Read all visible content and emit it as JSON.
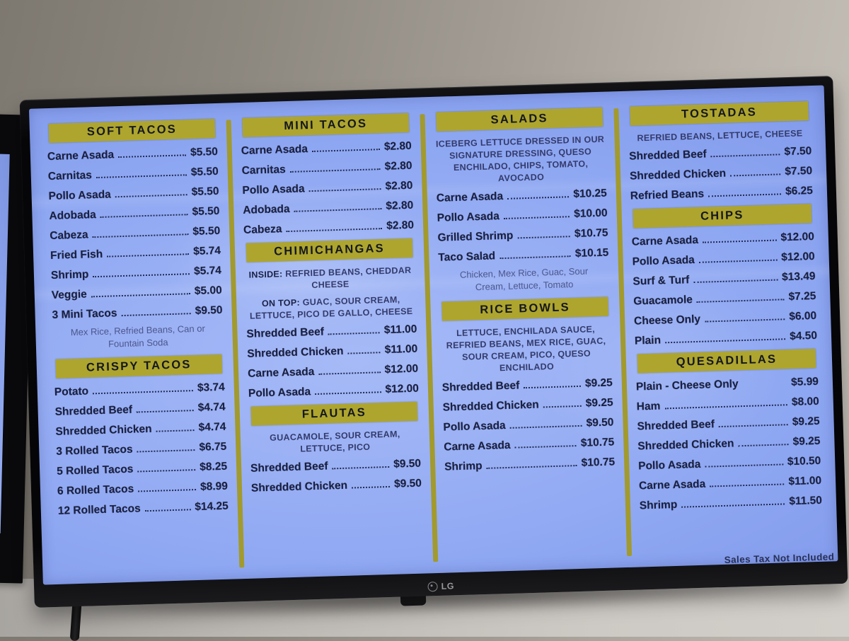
{
  "photo": {
    "brand": "LG",
    "sales_tax_note": "Sales Tax Not Included"
  },
  "colors": {
    "screen_blue": "#8EA7F2",
    "header_olive": "#AEA52F",
    "text_dark": "#1A2040",
    "bezel_black": "#060608"
  },
  "menu": {
    "columns": [
      {
        "sections": [
          {
            "title": "SOFT TACOS",
            "items": [
              {
                "name": "Carne Asada",
                "price": "$5.50"
              },
              {
                "name": "Carnitas",
                "price": "$5.50"
              },
              {
                "name": "Pollo Asada",
                "price": "$5.50"
              },
              {
                "name": "Adobada",
                "price": "$5.50"
              },
              {
                "name": "Cabeza",
                "price": "$5.50"
              },
              {
                "name": "Fried Fish",
                "price": "$5.74"
              },
              {
                "name": "Shrimp",
                "price": "$5.74"
              },
              {
                "name": "Veggie",
                "price": "$5.00"
              },
              {
                "name": "3 Mini Tacos",
                "price": "$9.50"
              }
            ],
            "note": "Mex Rice, Refried Beans, Can or Fountain Soda"
          },
          {
            "title": "CRISPY TACOS",
            "items": [
              {
                "name": "Potato",
                "price": "$3.74"
              },
              {
                "name": "Shredded Beef",
                "price": "$4.74"
              },
              {
                "name": "Shredded Chicken",
                "price": "$4.74"
              },
              {
                "name": "3 Rolled Tacos",
                "price": "$6.75"
              },
              {
                "name": "5 Rolled Tacos",
                "price": "$8.25"
              },
              {
                "name": "6 Rolled Tacos",
                "price": "$8.99"
              },
              {
                "name": "12 Rolled Tacos",
                "price": "$14.25"
              }
            ]
          }
        ]
      },
      {
        "sections": [
          {
            "title": "MINI TACOS",
            "items": [
              {
                "name": "Carne Asada",
                "price": "$2.80"
              },
              {
                "name": "Carnitas",
                "price": "$2.80"
              },
              {
                "name": "Pollo Asada",
                "price": "$2.80"
              },
              {
                "name": "Adobada",
                "price": "$2.80"
              },
              {
                "name": "Cabeza",
                "price": "$2.80"
              }
            ]
          },
          {
            "title": "CHIMICHANGAS",
            "desc_lines": [
              {
                "prefix": "INSIDE:",
                "text": "REFRIED BEANS, CHEDDAR CHEESE"
              },
              {
                "prefix": "ON TOP:",
                "text": "GUAC, SOUR CREAM, LETTUCE, PICO DE GALLO, CHEESE"
              }
            ],
            "items": [
              {
                "name": "Shredded Beef",
                "price": "$11.00"
              },
              {
                "name": "Shredded Chicken",
                "price": "$11.00"
              },
              {
                "name": "Carne Asada",
                "price": "$12.00"
              },
              {
                "name": "Pollo Asada",
                "price": "$12.00"
              }
            ]
          },
          {
            "title": "FLAUTAS",
            "desc": "GUACAMOLE, SOUR CREAM, LETTUCE, PICO",
            "items": [
              {
                "name": "Shredded Beef",
                "price": "$9.50"
              },
              {
                "name": "Shredded Chicken",
                "price": "$9.50"
              }
            ]
          }
        ]
      },
      {
        "sections": [
          {
            "title": "SALADS",
            "desc": "ICEBERG LETTUCE DRESSED IN OUR SIGNATURE DRESSING, QUESO ENCHILADO, CHIPS, TOMATO, AVOCADO",
            "items": [
              {
                "name": "Carne Asada",
                "price": "$10.25"
              },
              {
                "name": "Pollo Asada",
                "price": "$10.00"
              },
              {
                "name": "Grilled Shrimp",
                "price": "$10.75"
              },
              {
                "name": "Taco Salad",
                "price": "$10.15"
              }
            ],
            "note": "Chicken, Mex Rice, Guac, Sour Cream, Lettuce, Tomato"
          },
          {
            "title": "RICE BOWLS",
            "desc": "LETTUCE, ENCHILADA SAUCE, REFRIED BEANS, MEX RICE, GUAC, SOUR CREAM, PICO, QUESO ENCHILADO",
            "items": [
              {
                "name": "Shredded Beef",
                "price": "$9.25"
              },
              {
                "name": "Shredded Chicken",
                "price": "$9.25"
              },
              {
                "name": "Pollo Asada",
                "price": "$9.50"
              },
              {
                "name": "Carne Asada",
                "price": "$10.75"
              },
              {
                "name": "Shrimp",
                "price": "$10.75"
              }
            ]
          }
        ]
      },
      {
        "sections": [
          {
            "title": "TOSTADAS",
            "desc": "REFRIED BEANS, LETTUCE, CHEESE",
            "items": [
              {
                "name": "Shredded Beef",
                "price": "$7.50"
              },
              {
                "name": "Shredded Chicken",
                "price": "$7.50"
              },
              {
                "name": "Refried Beans",
                "price": "$6.25"
              }
            ]
          },
          {
            "title": "CHIPS",
            "items": [
              {
                "name": "Carne Asada",
                "price": "$12.00"
              },
              {
                "name": "Pollo Asada",
                "price": "$12.00"
              },
              {
                "name": "Surf & Turf",
                "price": "$13.49"
              },
              {
                "name": "Guacamole",
                "price": "$7.25"
              },
              {
                "name": "Cheese Only",
                "price": "$6.00"
              },
              {
                "name": "Plain",
                "price": "$4.50"
              }
            ]
          },
          {
            "title": "QUESADILLAS",
            "items": [
              {
                "name": "Plain - Cheese Only",
                "price": "$5.99",
                "leader": false
              },
              {
                "name": "Ham",
                "price": "$8.00"
              },
              {
                "name": "Shredded Beef",
                "price": "$9.25"
              },
              {
                "name": "Shredded Chicken",
                "price": "$9.25"
              },
              {
                "name": "Pollo Asada",
                "price": "$10.50"
              },
              {
                "name": "Carne Asada",
                "price": "$11.00"
              },
              {
                "name": "Shrimp",
                "price": "$11.50"
              }
            ]
          }
        ]
      }
    ]
  }
}
